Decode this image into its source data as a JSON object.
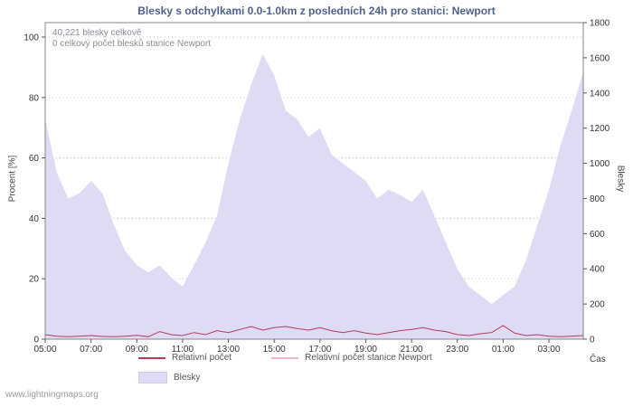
{
  "title": "Blesky s odchylkami 0.0-1.0km z posledních 24h pro stanici: Newport",
  "watermark": "www.lightningmaps.org",
  "annotations": {
    "total_line1": "40,221 blesky celkově",
    "total_line2": "0 celkový počet blesků stanice Newport"
  },
  "axes": {
    "left": "Procent  [%]",
    "right": "Blesky",
    "x": "Čas"
  },
  "legend": {
    "items": [
      {
        "label": "Relativní počet",
        "color": "#b43a5a",
        "type": "line"
      },
      {
        "label": "Relativní počet stanice Newport",
        "color": "#f2b3c6",
        "type": "line"
      },
      {
        "label": "Blesky",
        "color": "#dedcf4",
        "type": "area"
      }
    ]
  },
  "chart_data": {
    "type": "area",
    "title": "Blesky s odchylkami 0.0-1.0km z posledních 24h pro stanici: Newport",
    "x": [
      "05:00",
      "05:30",
      "06:00",
      "06:30",
      "07:00",
      "07:30",
      "08:00",
      "08:30",
      "09:00",
      "09:30",
      "10:00",
      "10:30",
      "11:00",
      "11:30",
      "12:00",
      "12:30",
      "13:00",
      "13:30",
      "14:00",
      "14:30",
      "15:00",
      "15:30",
      "16:00",
      "16:30",
      "17:00",
      "17:30",
      "18:00",
      "18:30",
      "19:00",
      "19:30",
      "20:00",
      "20:30",
      "21:00",
      "21:30",
      "22:00",
      "22:30",
      "23:00",
      "23:30",
      "00:00",
      "00:30",
      "01:00",
      "01:30",
      "02:00",
      "02:30",
      "03:00",
      "03:30",
      "04:00",
      "04:30"
    ],
    "series": [
      {
        "name": "Blesky",
        "type": "area",
        "axis": "right",
        "color": "#dedcf4",
        "values": [
          1250,
          950,
          800,
          830,
          900,
          830,
          650,
          500,
          420,
          380,
          420,
          350,
          300,
          420,
          550,
          700,
          1000,
          1250,
          1450,
          1620,
          1500,
          1300,
          1250,
          1150,
          1200,
          1050,
          1000,
          950,
          900,
          800,
          850,
          820,
          780,
          850,
          700,
          550,
          400,
          300,
          250,
          200,
          250,
          300,
          450,
          650,
          850,
          1100,
          1300,
          1520
        ]
      },
      {
        "name": "Relativní počet stanice Newport",
        "type": "line",
        "axis": "left",
        "color": "#f2b3c6",
        "values": [
          0,
          0,
          0,
          0,
          0,
          0,
          0,
          0,
          0,
          0,
          0,
          0,
          0,
          0,
          0,
          0,
          0,
          0,
          0,
          0,
          0,
          0,
          0,
          0,
          0,
          0,
          0,
          0,
          0,
          0,
          0,
          0,
          0,
          0,
          0,
          0,
          0,
          0,
          0,
          0,
          0,
          0,
          0,
          0,
          0,
          0,
          0,
          0
        ]
      },
      {
        "name": "Relativní počet",
        "type": "line",
        "axis": "left",
        "color": "#b43a5a",
        "values": [
          1.5,
          1.0,
          0.8,
          1.0,
          1.2,
          0.9,
          0.8,
          1.0,
          1.3,
          0.8,
          2.5,
          1.5,
          1.2,
          2.2,
          1.5,
          2.8,
          2.2,
          3.2,
          4.2,
          3.0,
          3.8,
          4.2,
          3.5,
          3.0,
          3.8,
          2.8,
          2.2,
          2.8,
          2.0,
          1.5,
          2.2,
          2.8,
          3.2,
          3.8,
          3.0,
          2.5,
          1.5,
          1.2,
          1.8,
          2.2,
          4.5,
          2.0,
          1.2,
          1.5,
          1.0,
          0.8,
          1.0,
          1.2
        ]
      }
    ],
    "left_axis": {
      "label": "Procent  [%]",
      "range": [
        0,
        100
      ],
      "ticks": [
        0,
        20,
        40,
        60,
        80,
        100
      ]
    },
    "right_axis": {
      "label": "Blesky",
      "range": [
        0,
        1800
      ],
      "ticks": [
        0,
        200,
        400,
        600,
        800,
        1000,
        1200,
        1400,
        1600,
        1800
      ]
    },
    "x_axis": {
      "label": "Čas",
      "ticks": [
        "05:00",
        "07:00",
        "09:00",
        "11:00",
        "13:00",
        "15:00",
        "17:00",
        "19:00",
        "21:00",
        "23:00",
        "01:00",
        "03:00"
      ]
    },
    "annotations": [
      "40,221 blesky celkově",
      "0 celkový počet blesků stanice Newport"
    ],
    "grid": true,
    "legend_position": "bottom"
  }
}
